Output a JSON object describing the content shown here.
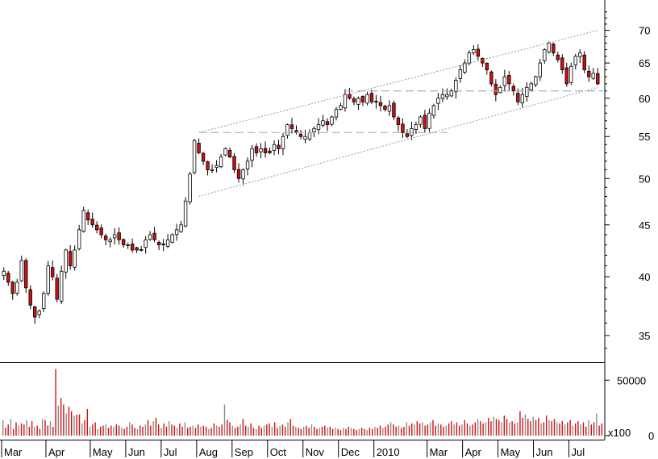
{
  "chart_data": [
    {
      "type": "candlestick",
      "scale": "log",
      "ylim": [
        33,
        75
      ],
      "y_ticks": [
        35,
        40,
        45,
        50,
        55,
        60,
        65,
        70
      ],
      "x_labels": [
        "Mar",
        "Apr",
        "May",
        "Jun",
        "Jul",
        "Aug",
        "Sep",
        "Oct",
        "Nov",
        "Dec",
        "2010",
        "Mar",
        "Apr",
        "May",
        "Jun",
        "Jul"
      ],
      "up_color": "#ffffff",
      "down_color": "#d01010",
      "price_series": [
        {
          "period": "Mar",
          "values": [
            40.5,
            39.5,
            38.5,
            39.5,
            41.5,
            39.0,
            37.5,
            36.5,
            37.0,
            38.5
          ]
        },
        {
          "period": "Apr",
          "values": [
            41.0,
            40.0,
            38.0,
            40.5,
            42.5,
            41.0,
            42.5,
            44.5,
            46.5,
            45.5
          ]
        },
        {
          "period": "May",
          "values": [
            45.0,
            44.5,
            44.0,
            43.5,
            43.5,
            44.0,
            43.5,
            43.0
          ]
        },
        {
          "period": "Jun",
          "values": [
            43.0,
            42.5,
            42.5,
            42.5,
            43.5,
            44.0,
            43.5,
            43.0
          ]
        },
        {
          "period": "Jul",
          "values": [
            43.0,
            43.5,
            44.0,
            44.5,
            45.0,
            47.5,
            50.5,
            54.5
          ]
        },
        {
          "period": "Aug",
          "values": [
            53.0,
            52.0,
            51.0,
            51.0,
            51.5,
            52.5,
            53.5,
            52.5
          ]
        },
        {
          "period": "Sep",
          "values": [
            51.0,
            50.0,
            51.0,
            52.0,
            53.5,
            53.0,
            53.5,
            53.0
          ]
        },
        {
          "period": "Oct",
          "values": [
            53.0,
            54.0,
            53.5,
            55.0,
            56.5,
            56.0,
            55.5,
            55.0
          ]
        },
        {
          "period": "Nov",
          "values": [
            55.0,
            55.5,
            56.0,
            56.5,
            57.0,
            56.5,
            57.5,
            58.5
          ]
        },
        {
          "period": "Dec",
          "values": [
            59.0,
            60.5,
            60.0,
            59.5,
            60.0,
            59.5,
            60.5,
            59.5
          ]
        },
        {
          "period": "2010",
          "values": [
            59.5,
            59.0,
            58.5,
            59.0,
            57.5,
            56.5,
            55.5,
            55.0,
            56.0,
            56.5,
            57.5,
            56.0
          ]
        },
        {
          "period": "Mar",
          "values": [
            58.0,
            59.0,
            60.0,
            60.5,
            60.5,
            61.0,
            62.5,
            64.0
          ]
        },
        {
          "period": "Apr",
          "values": [
            65.0,
            66.5,
            67.0,
            66.0,
            65.0,
            64.0,
            62.0,
            60.5
          ]
        },
        {
          "period": "May",
          "values": [
            61.5,
            63.0,
            62.0,
            61.0,
            59.5,
            60.5,
            61.5,
            62.0
          ]
        },
        {
          "period": "Jun",
          "values": [
            63.0,
            65.0,
            67.0,
            68.0,
            66.5,
            65.5,
            64.0,
            62.0
          ]
        },
        {
          "period": "Jul",
          "values": [
            64.5,
            66.0,
            66.5,
            64.0,
            63.0,
            63.5,
            62.0
          ]
        }
      ],
      "overlays": {
        "channel_upper": [
          {
            "x": "Aug",
            "y": 55.5
          },
          {
            "x": "Jul",
            "y": 70.0
          }
        ],
        "channel_lower": [
          {
            "x": "Aug",
            "y": 48.0
          },
          {
            "x": "Jul",
            "y": 61.5
          }
        ],
        "horizontal_levels": [
          55.5,
          61.0
        ]
      }
    },
    {
      "type": "bar",
      "subtype": "volume",
      "y_ticks": [
        0,
        50000
      ],
      "multiplier_label": "x100",
      "values": [
        14000,
        7000,
        10000,
        15000,
        6000,
        12000,
        9000,
        11000,
        10000,
        14000,
        8000,
        13000,
        8000,
        9000,
        6000,
        15000,
        14000,
        9000,
        13000,
        8000,
        60000,
        27000,
        34000,
        28000,
        20000,
        26000,
        22000,
        18000,
        19000,
        19000,
        11000,
        14000,
        24000,
        8000,
        10000,
        12000,
        6000,
        8000,
        9000,
        10000,
        7000,
        9000,
        8000,
        10000,
        9000,
        7000,
        6000,
        8000,
        12000,
        10000,
        7000,
        6000,
        9000,
        8000,
        10000,
        14000,
        9000,
        13000,
        16000,
        10000,
        7000,
        11000,
        8000,
        13000,
        10000,
        9000,
        7000,
        11000,
        8000,
        12000,
        7000,
        8000,
        9000,
        7000,
        10000,
        8000,
        9000,
        8000,
        6000,
        7000,
        11000,
        9000,
        8000,
        10000,
        28000,
        14000,
        12000,
        9000,
        7000,
        8000,
        10000,
        15000,
        9000,
        8000,
        11000,
        7000,
        6000,
        9000,
        7000,
        9000,
        10000,
        11000,
        8000,
        12000,
        7000,
        9000,
        10000,
        8000,
        12000,
        15000,
        9000,
        8000,
        7000,
        6000,
        8000,
        9000,
        7000,
        10000,
        8000,
        6000,
        7000,
        8000,
        9000,
        7000,
        8000,
        6000,
        7000,
        6000,
        5000,
        7000,
        6000,
        8000,
        7000,
        6000,
        5000,
        6000,
        7000,
        6000,
        5000,
        7000,
        6000,
        8000,
        7000,
        9000,
        7000,
        8000,
        10000,
        12000,
        10000,
        8000,
        9000,
        7000,
        8000,
        12000,
        9000,
        11000,
        10000,
        13000,
        11000,
        12000,
        9000,
        10000,
        12000,
        14000,
        9000,
        11000,
        10000,
        8000,
        9000,
        11000,
        13000,
        10000,
        12000,
        9000,
        10000,
        14000,
        11000,
        9000,
        10000,
        12000,
        15000,
        13000,
        11000,
        12000,
        16000,
        13000,
        17000,
        15000,
        14000,
        12000,
        18000,
        15000,
        12000,
        13000,
        11000,
        12000,
        22000,
        16000,
        19000,
        15000,
        13000,
        17000,
        14000,
        16000,
        11000,
        12000,
        18000,
        14000,
        13000,
        15000,
        12000,
        11000,
        13000,
        10000,
        12000,
        14000,
        9000,
        11000,
        13000,
        10000,
        12000,
        8000,
        14000,
        10000,
        12000,
        20000,
        9000,
        11000
      ]
    }
  ]
}
